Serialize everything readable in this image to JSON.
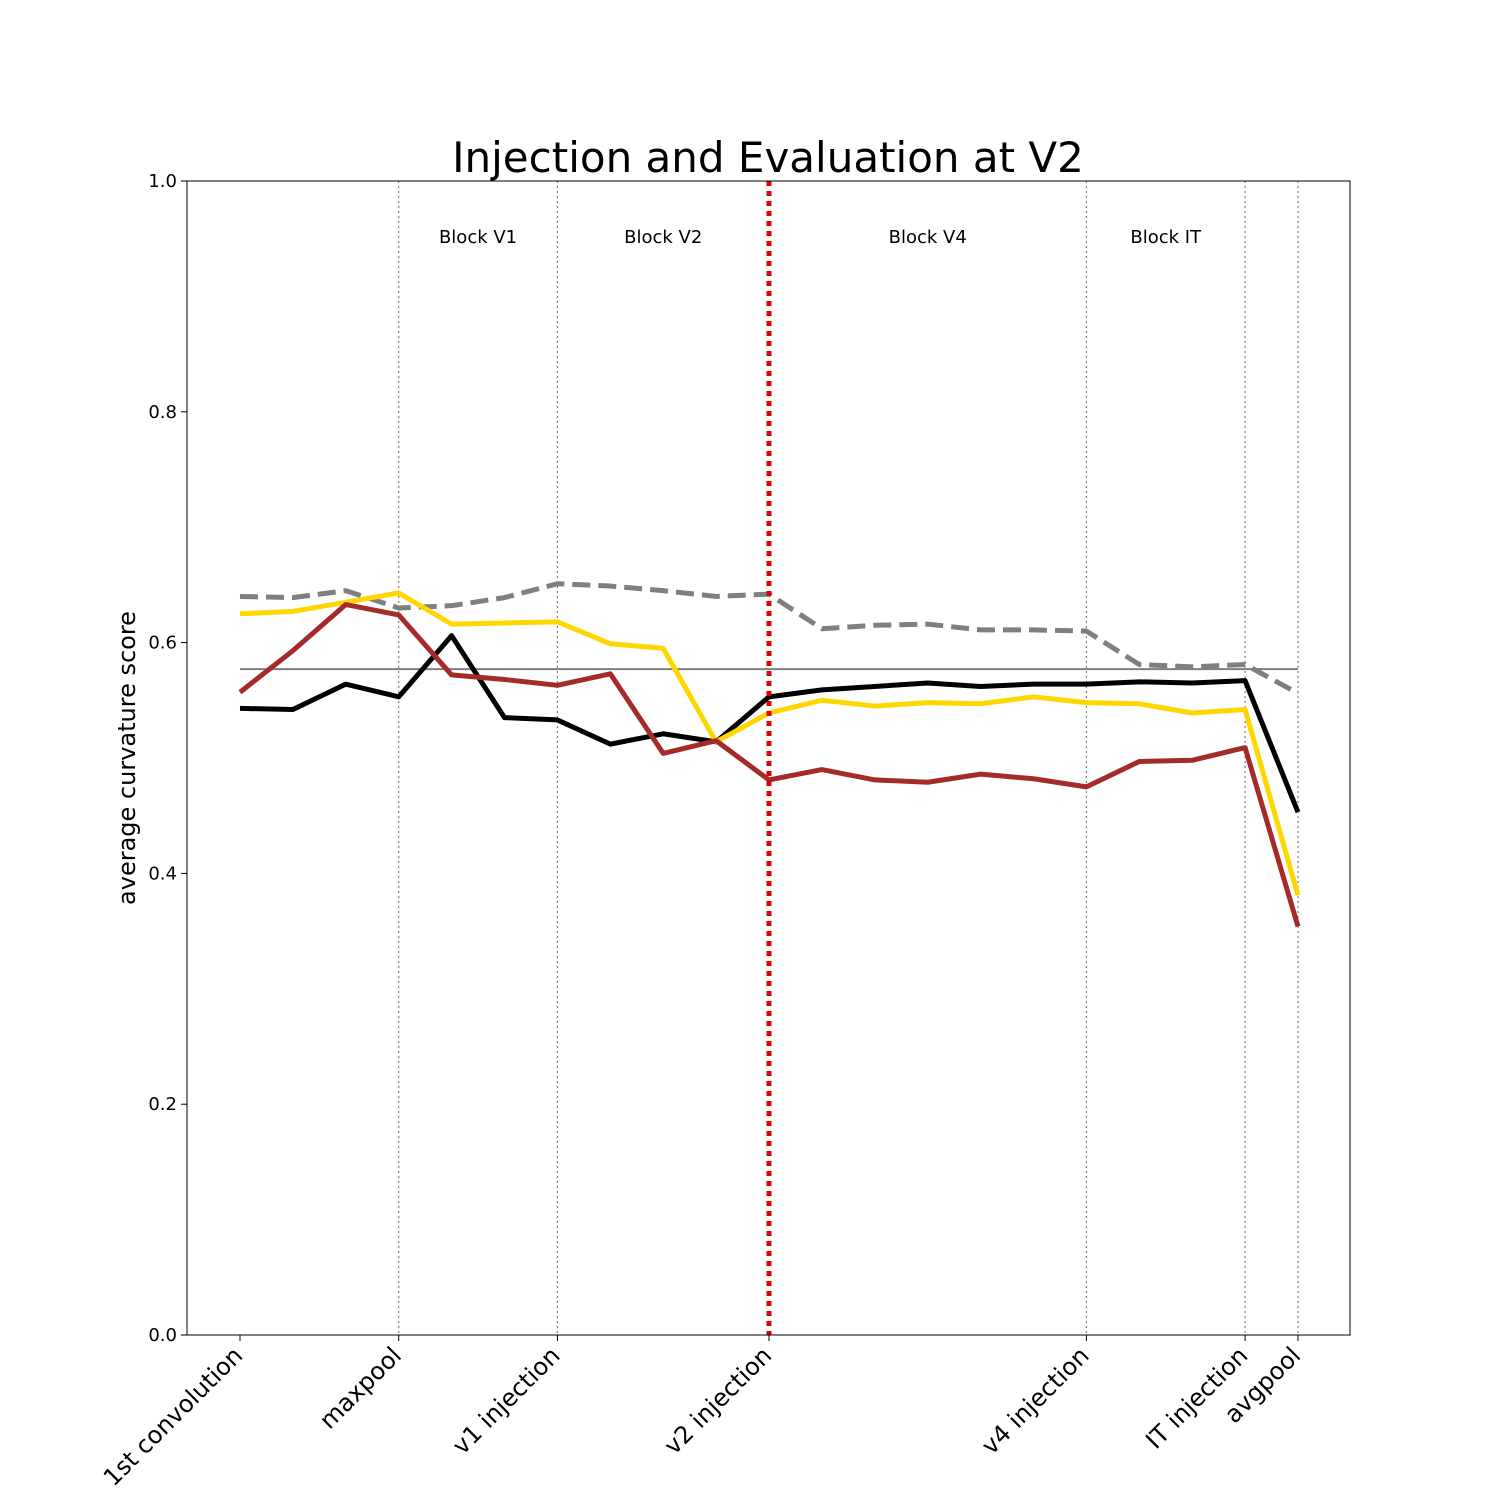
{
  "chart_data": {
    "type": "line",
    "title": "Injection and Evaluation at V2",
    "xlabel": "",
    "ylabel": "average curvature score",
    "ylim": [
      0,
      1.0
    ],
    "yticks": [
      "0.0",
      "0.2",
      "0.4",
      "0.6",
      "0.8",
      "1.0"
    ],
    "x_positions": [
      0,
      1,
      2,
      3,
      4,
      5,
      6,
      7,
      8,
      9,
      10,
      11,
      12,
      13,
      14,
      15,
      16,
      17,
      18,
      19,
      20
    ],
    "xticks": [
      {
        "x": 0,
        "label": "1st convolution"
      },
      {
        "x": 3,
        "label": "maxpool"
      },
      {
        "x": 6,
        "label": "v1 injection"
      },
      {
        "x": 10,
        "label": "v2 injection"
      },
      {
        "x": 16,
        "label": "v4 injection"
      },
      {
        "x": 19,
        "label": "IT injection"
      },
      {
        "x": 20,
        "label": "avgpool"
      }
    ],
    "block_labels": [
      {
        "label": "Block V1",
        "x": 4.5
      },
      {
        "label": "Block V2",
        "x": 8
      },
      {
        "label": "Block V4",
        "x": 13
      },
      {
        "label": "Block IT",
        "x": 17.5
      }
    ],
    "separators": [
      3,
      6,
      16,
      19,
      20
    ],
    "injection_line": {
      "x": 10,
      "color": "#e00000"
    },
    "reference_line": {
      "y": 0.577,
      "color": "#7f7f7f"
    },
    "grid": false,
    "series": [
      {
        "color": "#7f7f7f",
        "style": "dashed",
        "values": [
          0.64,
          0.639,
          0.645,
          0.63,
          0.632,
          0.639,
          0.651,
          0.649,
          0.645,
          0.64,
          0.642,
          0.612,
          0.615,
          0.616,
          0.611,
          0.611,
          0.61,
          0.581,
          0.579,
          0.581,
          0.556
        ]
      },
      {
        "color": "#000000",
        "style": "solid",
        "values": [
          0.543,
          0.542,
          0.564,
          0.553,
          0.606,
          0.535,
          0.533,
          0.512,
          0.521,
          0.514,
          0.553,
          0.559,
          0.562,
          0.565,
          0.562,
          0.564,
          0.564,
          0.566,
          0.565,
          0.567,
          0.453
        ]
      },
      {
        "color": "#ffd700",
        "style": "solid",
        "values": [
          0.625,
          0.627,
          0.635,
          0.643,
          0.616,
          0.617,
          0.618,
          0.599,
          0.595,
          0.514,
          0.539,
          0.55,
          0.545,
          0.548,
          0.547,
          0.553,
          0.548,
          0.547,
          0.539,
          0.542,
          0.381
        ]
      },
      {
        "color": "#a52a2a",
        "style": "solid",
        "values": [
          0.557,
          0.593,
          0.633,
          0.624,
          0.572,
          0.568,
          0.563,
          0.573,
          0.504,
          0.515,
          0.481,
          0.49,
          0.481,
          0.479,
          0.486,
          0.482,
          0.475,
          0.497,
          0.498,
          0.509,
          0.354
        ]
      }
    ]
  }
}
